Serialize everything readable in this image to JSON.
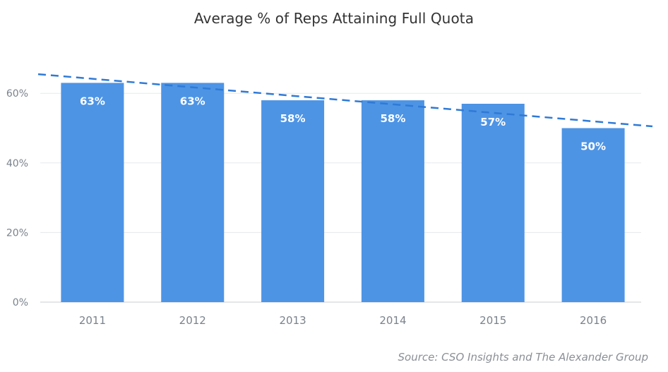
{
  "chart_data": {
    "type": "bar",
    "title": "Average % of Reps Attaining Full Quota",
    "categories": [
      "2011",
      "2012",
      "2013",
      "2014",
      "2015",
      "2016"
    ],
    "values": [
      63,
      63,
      58,
      58,
      57,
      50
    ],
    "data_labels": [
      "63%",
      "63%",
      "58%",
      "58%",
      "57%",
      "50%"
    ],
    "ylim": [
      0,
      70
    ],
    "yticks": [
      0,
      20,
      40,
      60
    ],
    "ytick_labels": [
      "0%",
      "20%",
      "40%",
      "60%"
    ],
    "xlabel": "",
    "ylabel": "",
    "grid": true,
    "trendline": {
      "style": "dashed",
      "start": 65.5,
      "end": 50.5
    },
    "colors": {
      "bar": "#4d94e5",
      "trendline": "#2f7ad6",
      "grid": "#e6e8ea"
    }
  },
  "source": "Source: CSO Insights and The Alexander Group"
}
